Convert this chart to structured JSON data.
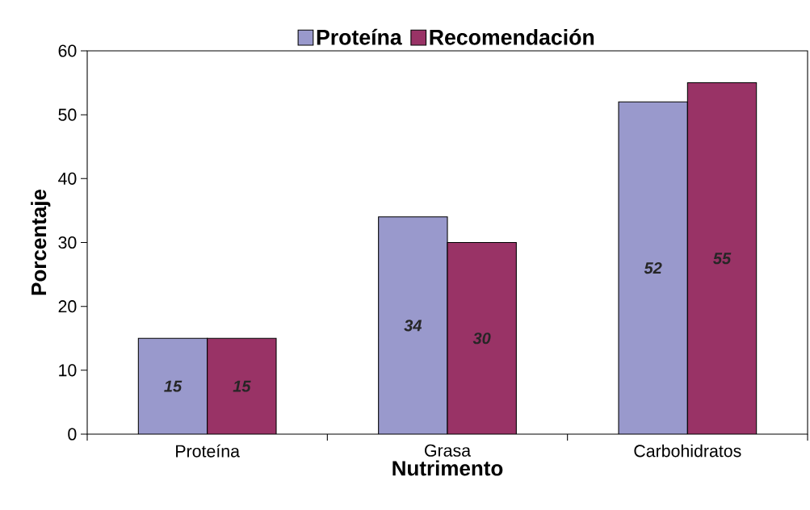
{
  "chart_data": {
    "type": "bar",
    "xlabel": "Nutrimento",
    "ylabel": "Porcentaje",
    "categories": [
      "Proteína",
      "Grasa",
      "Carbohidratos"
    ],
    "series": [
      {
        "name": "Proteína",
        "color": "#9999cc",
        "values": [
          15,
          34,
          52
        ]
      },
      {
        "name": "Recomendación",
        "color": "#993366",
        "values": [
          15,
          30,
          55
        ]
      }
    ],
    "ylim": [
      0,
      60
    ],
    "yticks": [
      0,
      10,
      20,
      30,
      40,
      50,
      60
    ],
    "data_labels": true,
    "legend": "top"
  }
}
